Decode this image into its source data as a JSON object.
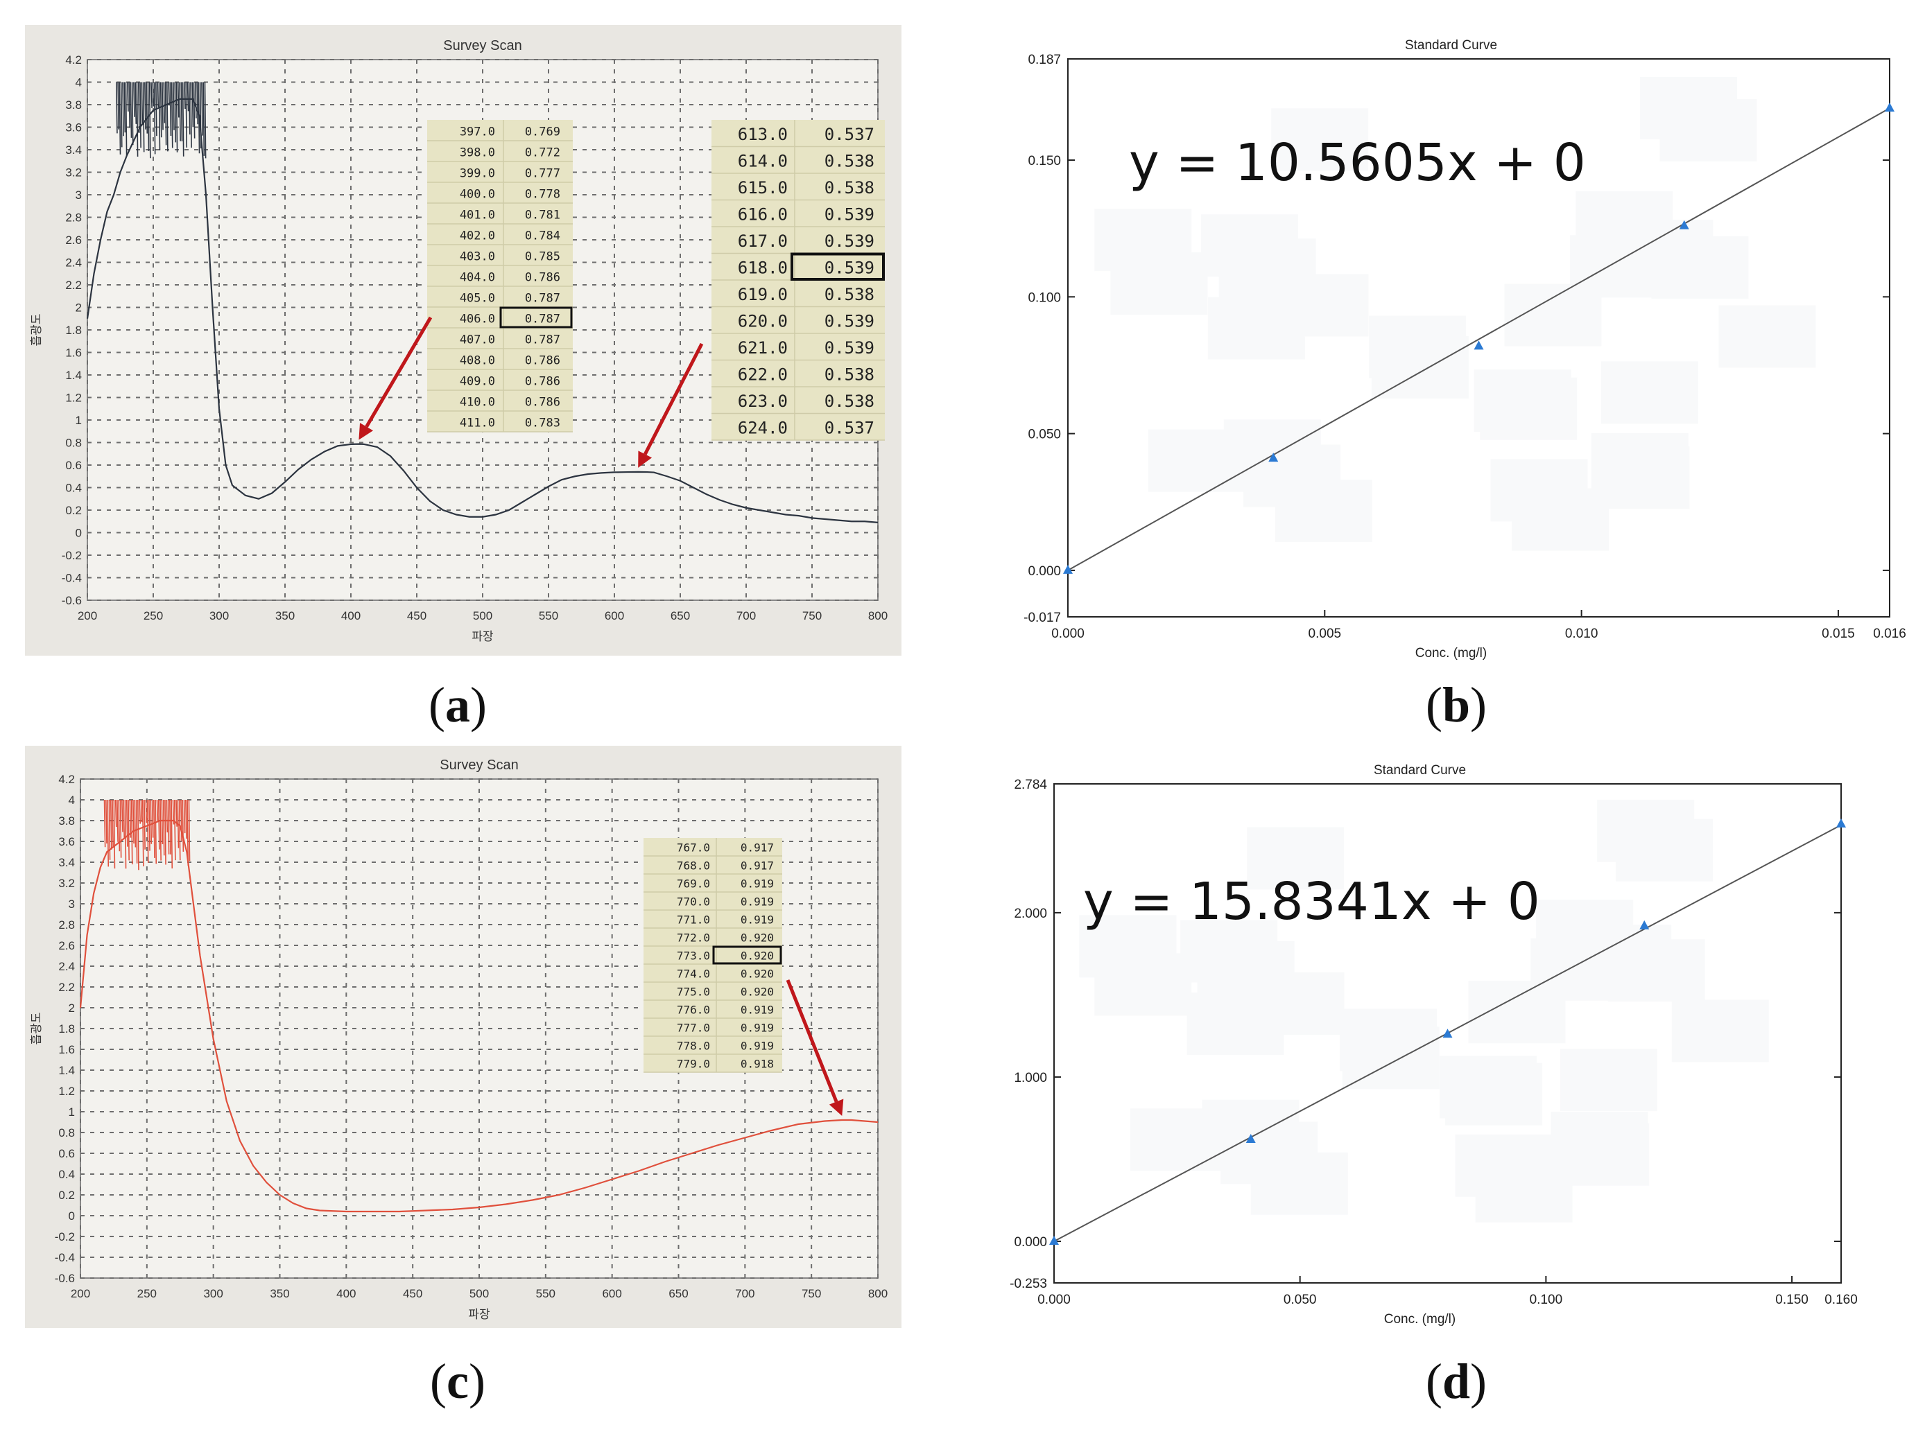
{
  "captions": {
    "a": "a",
    "b": "b",
    "c": "c",
    "d": "d"
  },
  "colors": {
    "spectrum_a": "#2c3440",
    "spectrum_c": "#e0503c",
    "arrow": "#c0171b",
    "marker": "#2b7ad3",
    "fit_line": "#555555"
  },
  "chart_data": [
    {
      "panel": "a",
      "type": "line",
      "title": "Survey Scan",
      "xlabel": "파장",
      "ylabel": "흡광도",
      "xlim": [
        200,
        800
      ],
      "ylim": [
        -0.6,
        4.2
      ],
      "x_ticks": [
        "200",
        "250",
        "300",
        "350",
        "400",
        "450",
        "500",
        "550",
        "600",
        "650",
        "700",
        "750",
        "800"
      ],
      "y_ticks": [
        "4.2",
        "4",
        "3.8",
        "3.6",
        "3.4",
        "3.2",
        "3",
        "2.8",
        "2.6",
        "2.4",
        "2.2",
        "2",
        "1.8",
        "1.6",
        "1.4",
        "1.2",
        "1",
        "0.8",
        "0.6",
        "0.4",
        "0.2",
        "0",
        "-0.2",
        "-0.4",
        "-0.6"
      ],
      "series": [
        {
          "x": [
            200,
            205,
            210,
            215,
            220,
            225,
            230,
            240,
            250,
            260,
            270,
            280,
            285,
            290,
            295,
            300,
            305,
            310,
            320,
            330,
            340,
            350,
            360,
            370,
            380,
            390,
            400,
            406,
            410,
            420,
            430,
            440,
            450,
            460,
            470,
            480,
            490,
            500,
            510,
            520,
            530,
            540,
            550,
            560,
            570,
            580,
            590,
            600,
            610,
            618,
            625,
            630,
            640,
            650,
            660,
            670,
            680,
            690,
            700,
            710,
            720,
            730,
            740,
            750,
            760,
            770,
            780,
            790,
            800
          ],
          "y": [
            1.9,
            2.3,
            2.6,
            2.85,
            3.0,
            3.2,
            3.35,
            3.6,
            3.75,
            3.8,
            3.85,
            3.85,
            3.7,
            3.0,
            2.0,
            1.1,
            0.6,
            0.42,
            0.33,
            0.3,
            0.35,
            0.45,
            0.56,
            0.65,
            0.72,
            0.77,
            0.785,
            0.787,
            0.785,
            0.76,
            0.68,
            0.55,
            0.4,
            0.28,
            0.2,
            0.16,
            0.14,
            0.14,
            0.16,
            0.2,
            0.27,
            0.34,
            0.41,
            0.47,
            0.5,
            0.52,
            0.53,
            0.536,
            0.538,
            0.539,
            0.538,
            0.535,
            0.5,
            0.46,
            0.4,
            0.34,
            0.29,
            0.25,
            0.22,
            0.2,
            0.18,
            0.16,
            0.15,
            0.13,
            0.12,
            0.11,
            0.1,
            0.1,
            0.09
          ]
        }
      ],
      "tables": [
        {
          "rows": [
            [
              "397.0",
              "0.769"
            ],
            [
              "398.0",
              "0.772"
            ],
            [
              "399.0",
              "0.777"
            ],
            [
              "400.0",
              "0.778"
            ],
            [
              "401.0",
              "0.781"
            ],
            [
              "402.0",
              "0.784"
            ],
            [
              "403.0",
              "0.785"
            ],
            [
              "404.0",
              "0.786"
            ],
            [
              "405.0",
              "0.787"
            ],
            [
              "406.0",
              "0.787"
            ],
            [
              "407.0",
              "0.787"
            ],
            [
              "408.0",
              "0.786"
            ],
            [
              "409.0",
              "0.786"
            ],
            [
              "410.0",
              "0.786"
            ],
            [
              "411.0",
              "0.783"
            ]
          ],
          "highlight": 9
        },
        {
          "rows": [
            [
              "613.0",
              "0.537"
            ],
            [
              "614.0",
              "0.538"
            ],
            [
              "615.0",
              "0.538"
            ],
            [
              "616.0",
              "0.539"
            ],
            [
              "617.0",
              "0.539"
            ],
            [
              "618.0",
              "0.539"
            ],
            [
              "619.0",
              "0.538"
            ],
            [
              "620.0",
              "0.539"
            ],
            [
              "621.0",
              "0.539"
            ],
            [
              "622.0",
              "0.538"
            ],
            [
              "623.0",
              "0.538"
            ],
            [
              "624.0",
              "0.537"
            ]
          ],
          "highlight": 5
        }
      ],
      "arrow_targets": [
        [
          406,
          0.787
        ],
        [
          618,
          0.539
        ]
      ]
    },
    {
      "panel": "b",
      "type": "scatter",
      "title": "Standard Curve",
      "xlabel": "Conc. (mg/l)",
      "ylabel": "",
      "xlim": [
        0.0,
        0.016
      ],
      "ylim": [
        -0.017,
        0.187
      ],
      "x_ticks": [
        "0.000",
        "0.005",
        "0.010",
        "0.015",
        "0.016"
      ],
      "x_tick_values": [
        0.0,
        0.005,
        0.01,
        0.015,
        0.016
      ],
      "y_ticks": [
        "0.187",
        "0.150",
        "0.100",
        "0.050",
        "0.000",
        "-0.017"
      ],
      "y_tick_values": [
        0.187,
        0.15,
        0.1,
        0.05,
        0.0,
        -0.017
      ],
      "points": {
        "x": [
          0.0,
          0.004,
          0.008,
          0.012,
          0.016
        ],
        "y": [
          0.0,
          0.041,
          0.082,
          0.126,
          0.169
        ]
      },
      "fit": {
        "slope": 10.5605,
        "intercept": 0
      },
      "equation": "y = 10.5605x + 0"
    },
    {
      "panel": "c",
      "type": "line",
      "title": "Survey Scan",
      "xlabel": "파장",
      "ylabel": "흡광도",
      "xlim": [
        200,
        800
      ],
      "ylim": [
        -0.6,
        4.2
      ],
      "x_ticks": [
        "200",
        "250",
        "300",
        "350",
        "400",
        "450",
        "500",
        "550",
        "600",
        "650",
        "700",
        "750",
        "800"
      ],
      "y_ticks": [
        "4.2",
        "4",
        "3.8",
        "3.6",
        "3.4",
        "3.2",
        "3",
        "2.8",
        "2.6",
        "2.4",
        "2.2",
        "2",
        "1.8",
        "1.6",
        "1.4",
        "1.2",
        "1",
        "0.8",
        "0.6",
        "0.4",
        "0.2",
        "0",
        "-0.2",
        "-0.4",
        "-0.6"
      ],
      "series": [
        {
          "x": [
            200,
            205,
            210,
            215,
            220,
            230,
            240,
            250,
            260,
            270,
            275,
            280,
            285,
            290,
            300,
            310,
            320,
            330,
            340,
            350,
            360,
            370,
            380,
            400,
            420,
            440,
            460,
            480,
            500,
            520,
            540,
            560,
            580,
            600,
            620,
            640,
            660,
            680,
            700,
            720,
            740,
            760,
            773,
            780,
            790,
            800
          ],
          "y": [
            2.0,
            2.7,
            3.1,
            3.35,
            3.5,
            3.6,
            3.7,
            3.75,
            3.8,
            3.8,
            3.75,
            3.5,
            3.0,
            2.5,
            1.7,
            1.1,
            0.72,
            0.48,
            0.32,
            0.2,
            0.12,
            0.07,
            0.05,
            0.04,
            0.04,
            0.04,
            0.05,
            0.06,
            0.08,
            0.11,
            0.15,
            0.2,
            0.27,
            0.35,
            0.43,
            0.52,
            0.6,
            0.68,
            0.75,
            0.82,
            0.88,
            0.91,
            0.92,
            0.92,
            0.91,
            0.9
          ]
        }
      ],
      "tables": [
        {
          "rows": [
            [
              "767.0",
              "0.917"
            ],
            [
              "768.0",
              "0.917"
            ],
            [
              "769.0",
              "0.919"
            ],
            [
              "770.0",
              "0.919"
            ],
            [
              "771.0",
              "0.919"
            ],
            [
              "772.0",
              "0.920"
            ],
            [
              "773.0",
              "0.920"
            ],
            [
              "774.0",
              "0.920"
            ],
            [
              "775.0",
              "0.920"
            ],
            [
              "776.0",
              "0.919"
            ],
            [
              "777.0",
              "0.919"
            ],
            [
              "778.0",
              "0.919"
            ],
            [
              "779.0",
              "0.918"
            ]
          ],
          "highlight": 6
        }
      ],
      "arrow_targets": [
        [
          773,
          0.92
        ]
      ]
    },
    {
      "panel": "d",
      "type": "scatter",
      "title": "Standard Curve",
      "xlabel": "Conc. (mg/l)",
      "ylabel": "",
      "xlim": [
        0.0,
        0.16
      ],
      "ylim": [
        -0.253,
        2.784
      ],
      "x_ticks": [
        "0.000",
        "0.050",
        "0.100",
        "0.150",
        "0.160"
      ],
      "x_tick_values": [
        0.0,
        0.05,
        0.1,
        0.15,
        0.16
      ],
      "y_ticks": [
        "2.784",
        "2.000",
        "1.000",
        "0.000",
        "-0.253"
      ],
      "y_tick_values": [
        2.784,
        2.0,
        1.0,
        0.0,
        -0.253
      ],
      "points": {
        "x": [
          0.0,
          0.04,
          0.08,
          0.12,
          0.16
        ],
        "y": [
          0.0,
          0.62,
          1.26,
          1.92,
          2.54
        ]
      },
      "fit": {
        "slope": 15.8341,
        "intercept": 0
      },
      "equation": "y = 15.8341x + 0"
    }
  ]
}
